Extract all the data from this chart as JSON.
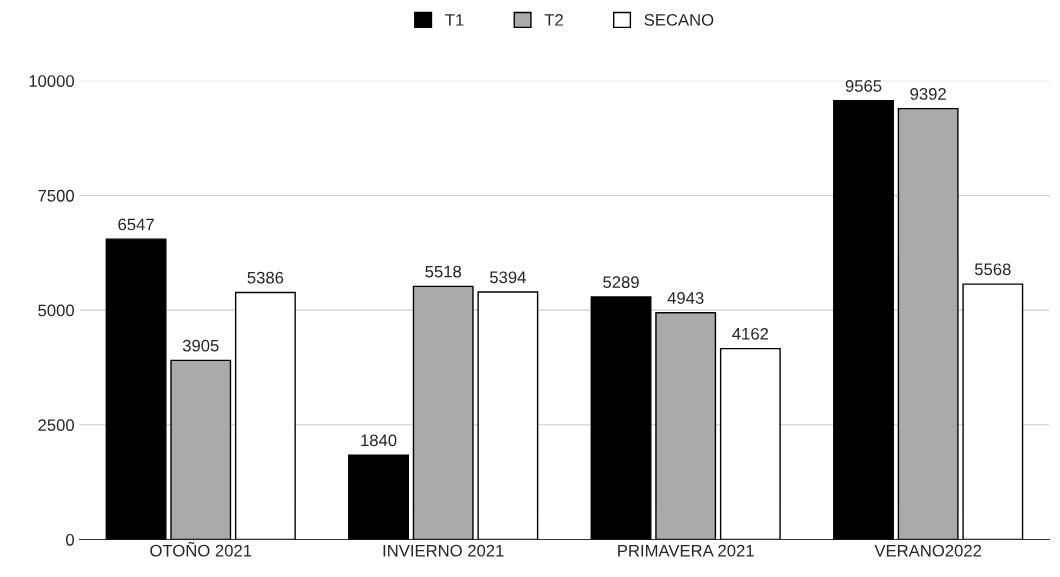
{
  "chart_data": {
    "type": "bar",
    "categories": [
      "OTOÑO 2021",
      "INVIERNO 2021",
      "PRIMAVERA 2021",
      "VERANO2022"
    ],
    "series": [
      {
        "name": "T1",
        "color": "#000000",
        "values": [
          6547,
          1840,
          5289,
          9565
        ]
      },
      {
        "name": "T2",
        "color": "#aaaaaa",
        "values": [
          3905,
          5518,
          4943,
          9392
        ]
      },
      {
        "name": "SECANO",
        "color": "#ffffff",
        "values": [
          5386,
          5394,
          4162,
          5568
        ]
      }
    ],
    "ylim": [
      0,
      10000
    ],
    "yticks": [
      0,
      2500,
      5000,
      7500,
      10000
    ],
    "grid": "y",
    "legend": "top",
    "data_labels": true
  }
}
